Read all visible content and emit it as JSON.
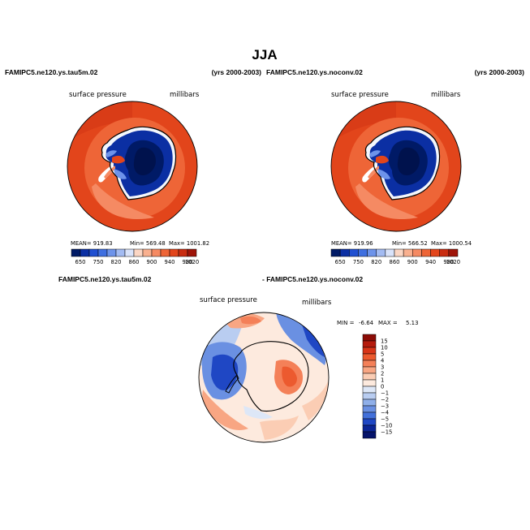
{
  "figure": {
    "title": "JJA"
  },
  "chart_data": [
    {
      "type": "polar-contour-map",
      "region": "Antarctica / Southern Ocean",
      "case": "FAMIPC5.ne120.ys.tau5m.02",
      "years": "(yrs 2000-2003)",
      "variable": "surface pressure",
      "units": "millibars",
      "stats": {
        "mean_label": "MEAN= 919.83",
        "min_label": "Min= 569.48",
        "max_label": "Max= 1001.82"
      },
      "colorbar": {
        "levels": [
          650,
          750,
          820,
          860,
          900,
          940,
          980,
          1020
        ],
        "tick_labels": [
          "650",
          "750",
          "820",
          "860",
          "900",
          "940",
          "980",
          "1020"
        ],
        "colors": [
          "#001a66",
          "#0b2fa3",
          "#1f4fd1",
          "#3f6fe0",
          "#6d93ea",
          "#a3bbf2",
          "#d9e3fa",
          "#fbd6c4",
          "#f9b08f",
          "#f58a63",
          "#ee6537",
          "#e2451b",
          "#c92c10",
          "#9e1408"
        ]
      }
    },
    {
      "type": "polar-contour-map",
      "region": "Antarctica / Southern Ocean",
      "case": "FAMIPC5.ne120.ys.noconv.02",
      "years": "(yrs 2000-2003)",
      "variable": "surface pressure",
      "units": "millibars",
      "stats": {
        "mean_label": "MEAN= 919.96",
        "min_label": "Min= 566.52",
        "max_label": "Max= 1000.54"
      },
      "colorbar": {
        "levels": [
          650,
          750,
          820,
          860,
          900,
          940,
          980,
          1020
        ],
        "tick_labels": [
          "650",
          "750",
          "820",
          "860",
          "900",
          "940",
          "980",
          "1020"
        ]
      }
    },
    {
      "type": "polar-contour-map-difference",
      "region": "Antarctica / Southern Ocean",
      "case_a": "FAMIPC5.ne120.ys.tau5m.02",
      "case_b": "- FAMIPC5.ne120.ys.noconv.02",
      "variable": "surface pressure",
      "units": "millibars",
      "stats": {
        "min_label": "MIN =",
        "min_value": "-6.64",
        "max_label": "MAX =",
        "max_value": "5.13"
      },
      "colorbar": {
        "levels": [
          15,
          10,
          5,
          4,
          3,
          2,
          1,
          0,
          -1,
          -2,
          -3,
          -4,
          -5,
          -10,
          -15
        ],
        "tick_labels": [
          "15",
          "10",
          "5",
          "4",
          "3",
          "2",
          "1",
          "0",
          "−1",
          "−2",
          "−3",
          "−4",
          "−5",
          "−10",
          "−15"
        ],
        "colors": [
          "#8c0c06",
          "#b51b0d",
          "#d83518",
          "#ec5a2f",
          "#f48058",
          "#f8a683",
          "#fbcdb4",
          "#fdeade",
          "#dde7f7",
          "#b9cdf1",
          "#8fafe9",
          "#6a90e2",
          "#4270da",
          "#1f47c4",
          "#0b2596",
          "#05136a"
        ]
      }
    }
  ]
}
